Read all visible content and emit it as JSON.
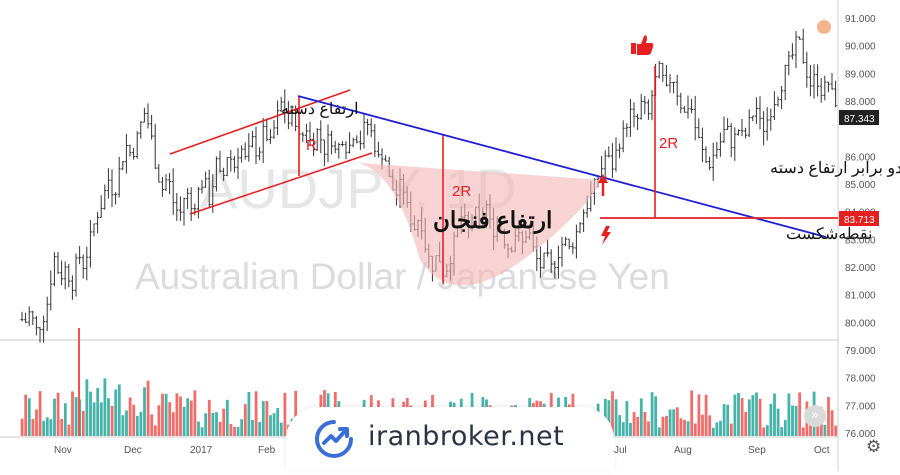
{
  "chart_data": {
    "type": "candlestick-bar",
    "background_title": "AUDJPY, 1D",
    "background_subtitle": "Australian Dollar / Japanese Yen",
    "y_ticks": [
      "91.000",
      "90.000",
      "89.000",
      "88.000",
      "86.000",
      "85.000",
      "84.000",
      "83.000",
      "82.000",
      "81.000",
      "80.000",
      "79.000",
      "78.000",
      "77.000",
      "76.000"
    ],
    "ylim": [
      75.5,
      91.3
    ],
    "x_ticks": [
      "Nov",
      "Dec",
      "2017",
      "Feb",
      "Jul",
      "Aug",
      "Sep",
      "Oct"
    ],
    "last_price_label": "87.343",
    "breakout_price_label": "83.713",
    "annotations": {
      "handle_height": "ارتفاع دسته",
      "cup_height": "ارتفاع فنجان",
      "breakout_point": "نقطه‌شکست",
      "twice_handle": "دو برابر ارتفاع دسته",
      "r_label": "R",
      "two_r_cup": "2R",
      "two_r_target": "2R"
    },
    "colors": {
      "up_volume": "#26a69a",
      "down_volume": "#ef5350",
      "trendline": "#1f1fd6",
      "annotation": "#e62020",
      "cup_fill": "#f2b7b5",
      "price_bar": "#333333"
    },
    "price_path": [
      [
        0,
        79.5
      ],
      [
        6,
        80.2
      ],
      [
        12,
        79.8
      ],
      [
        18,
        80.5
      ],
      [
        24,
        79.9
      ],
      [
        30,
        80.4
      ],
      [
        36,
        79.7
      ],
      [
        42,
        80.0
      ],
      [
        48,
        80.8
      ],
      [
        54,
        82.4
      ],
      [
        60,
        81.6
      ],
      [
        66,
        82.0
      ],
      [
        72,
        81.3
      ],
      [
        78,
        82.5
      ],
      [
        84,
        82.0
      ],
      [
        90,
        83.0
      ],
      [
        96,
        83.8
      ],
      [
        102,
        84.3
      ],
      [
        108,
        85.2
      ],
      [
        114,
        84.6
      ],
      [
        120,
        85.6
      ],
      [
        126,
        86.4
      ],
      [
        132,
        86.0
      ],
      [
        138,
        86.8
      ],
      [
        144,
        87.6
      ],
      [
        150,
        87.0
      ],
      [
        156,
        85.6
      ],
      [
        162,
        84.8
      ],
      [
        168,
        85.3
      ],
      [
        174,
        84.2
      ],
      [
        180,
        83.9
      ],
      [
        186,
        84.8
      ],
      [
        192,
        84.0
      ],
      [
        198,
        84.7
      ],
      [
        204,
        85.2
      ],
      [
        210,
        84.3
      ],
      [
        216,
        85.8
      ],
      [
        222,
        85.0
      ],
      [
        228,
        86.2
      ],
      [
        234,
        85.6
      ],
      [
        240,
        86.4
      ],
      [
        246,
        85.8
      ],
      [
        252,
        86.6
      ],
      [
        258,
        86.0
      ],
      [
        264,
        87.0
      ],
      [
        270,
        86.4
      ],
      [
        276,
        87.3
      ],
      [
        282,
        88.0
      ],
      [
        288,
        87.2
      ],
      [
        294,
        87.6
      ],
      [
        300,
        86.5
      ],
      [
        306,
        87.1
      ],
      [
        312,
        86.3
      ],
      [
        318,
        87.0
      ],
      [
        324,
        86.2
      ],
      [
        330,
        86.8
      ],
      [
        336,
        86.1
      ],
      [
        342,
        86.7
      ],
      [
        348,
        86.2
      ],
      [
        354,
        86.9
      ],
      [
        360,
        86.5
      ],
      [
        366,
        87.3
      ],
      [
        372,
        86.8
      ],
      [
        378,
        85.9
      ],
      [
        384,
        86.2
      ],
      [
        390,
        85.0
      ],
      [
        396,
        84.6
      ],
      [
        402,
        85.1
      ],
      [
        408,
        84.0
      ],
      [
        414,
        83.4
      ],
      [
        420,
        83.9
      ],
      [
        426,
        82.6
      ],
      [
        432,
        82.0
      ],
      [
        438,
        82.5
      ],
      [
        444,
        81.7
      ],
      [
        450,
        82.3
      ],
      [
        456,
        83.2
      ],
      [
        462,
        83.9
      ],
      [
        468,
        83.3
      ],
      [
        474,
        84.1
      ],
      [
        480,
        83.5
      ],
      [
        486,
        84.3
      ],
      [
        492,
        83.2
      ],
      [
        498,
        83.7
      ],
      [
        504,
        83.0
      ],
      [
        510,
        82.6
      ],
      [
        516,
        83.3
      ],
      [
        522,
        82.8
      ],
      [
        528,
        83.4
      ],
      [
        534,
        82.5
      ],
      [
        540,
        82.0
      ],
      [
        546,
        82.4
      ],
      [
        552,
        81.9
      ],
      [
        558,
        82.5
      ],
      [
        564,
        83.0
      ],
      [
        570,
        82.6
      ],
      [
        576,
        83.2
      ],
      [
        582,
        83.9
      ],
      [
        588,
        84.3
      ],
      [
        594,
        84.9
      ],
      [
        600,
        85.4
      ],
      [
        606,
        86.1
      ],
      [
        612,
        85.6
      ],
      [
        618,
        86.4
      ],
      [
        624,
        86.9
      ],
      [
        630,
        87.6
      ],
      [
        636,
        87.1
      ],
      [
        642,
        88.0
      ],
      [
        648,
        87.4
      ],
      [
        654,
        88.6
      ],
      [
        660,
        89.2
      ],
      [
        666,
        88.3
      ],
      [
        672,
        89.0
      ],
      [
        678,
        88.2
      ],
      [
        684,
        87.5
      ],
      [
        690,
        88.0
      ],
      [
        696,
        86.9
      ],
      [
        702,
        86.2
      ],
      [
        708,
        85.6
      ],
      [
        714,
        86.1
      ],
      [
        720,
        86.5
      ],
      [
        726,
        87.1
      ],
      [
        732,
        86.4
      ],
      [
        738,
        87.0
      ],
      [
        744,
        86.6
      ],
      [
        750,
        87.3
      ],
      [
        756,
        87.8
      ],
      [
        762,
        86.9
      ],
      [
        768,
        87.4
      ],
      [
        774,
        88.0
      ],
      [
        780,
        88.4
      ],
      [
        786,
        89.2
      ],
      [
        792,
        89.6
      ],
      [
        798,
        90.3
      ],
      [
        804,
        89.4
      ],
      [
        810,
        88.6
      ],
      [
        816,
        88.9
      ],
      [
        822,
        88.3
      ],
      [
        828,
        88.7
      ],
      [
        834,
        88.0
      ]
    ]
  }
}
